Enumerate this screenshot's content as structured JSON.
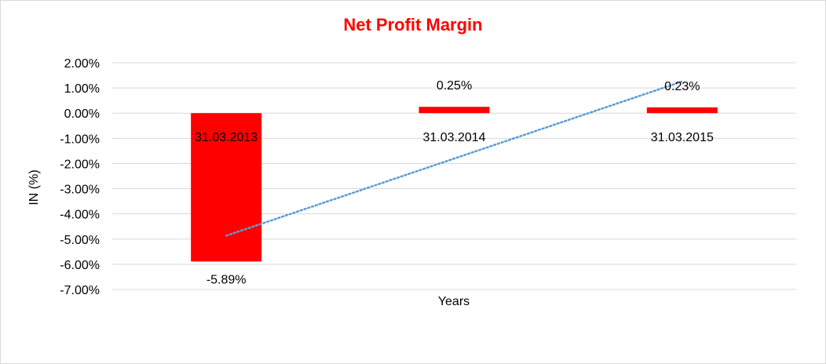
{
  "chart_data": {
    "type": "bar",
    "title": "Net Profit Margin",
    "xlabel": "Years",
    "ylabel": "IN (%)",
    "categories": [
      "31.03.2013",
      "31.03.2014",
      "31.03.2015"
    ],
    "series": [
      {
        "values": [
          -5.89,
          0.25,
          0.23
        ],
        "data_labels": [
          "-5.89%",
          "0.25%",
          "0.23%"
        ]
      }
    ],
    "ylim": [
      -7.0,
      2.0
    ],
    "yticks": [
      "2.00%",
      "1.00%",
      "0.00%",
      "-1.00%",
      "-2.00%",
      "-3.00%",
      "-4.00%",
      "-5.00%",
      "-6.00%",
      "-7.00%"
    ],
    "ytick_values": [
      2,
      1,
      0,
      -1,
      -2,
      -3,
      -4,
      -5,
      -6,
      -7
    ],
    "trendline": {
      "type": "linear",
      "style": "dotted",
      "color": "#5b9bd5"
    },
    "grid": true,
    "legend": "none",
    "colors": {
      "bar": "#ff0000",
      "title": "#ff0000",
      "grid": "#d9d9d9",
      "trend": "#5b9bd5"
    }
  }
}
